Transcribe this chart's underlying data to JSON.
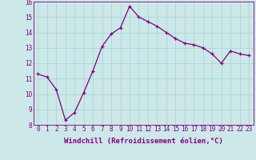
{
  "x": [
    0,
    1,
    2,
    3,
    4,
    5,
    6,
    7,
    8,
    9,
    10,
    11,
    12,
    13,
    14,
    15,
    16,
    17,
    18,
    19,
    20,
    21,
    22,
    23
  ],
  "y": [
    11.3,
    11.1,
    10.3,
    8.3,
    8.8,
    10.1,
    11.5,
    13.1,
    13.9,
    14.3,
    15.7,
    15.0,
    14.7,
    14.4,
    14.0,
    13.6,
    13.3,
    13.2,
    13.0,
    12.6,
    12.0,
    12.8,
    12.6,
    12.5
  ],
  "line_color": "#800080",
  "marker": "+",
  "marker_color": "#800080",
  "bg_color": "#cce8e8",
  "grid_color": "#b0d8d8",
  "xlabel": "Windchill (Refroidissement éolien,°C)",
  "tick_color": "#800080",
  "ylim": [
    8,
    16
  ],
  "xlim_min": -0.5,
  "xlim_max": 23.5,
  "yticks": [
    8,
    9,
    10,
    11,
    12,
    13,
    14,
    15,
    16
  ],
  "xticks": [
    0,
    1,
    2,
    3,
    4,
    5,
    6,
    7,
    8,
    9,
    10,
    11,
    12,
    13,
    14,
    15,
    16,
    17,
    18,
    19,
    20,
    21,
    22,
    23
  ],
  "tick_fontsize": 5.5,
  "label_fontsize": 6.5,
  "linewidth": 0.9,
  "markersize": 3.5
}
